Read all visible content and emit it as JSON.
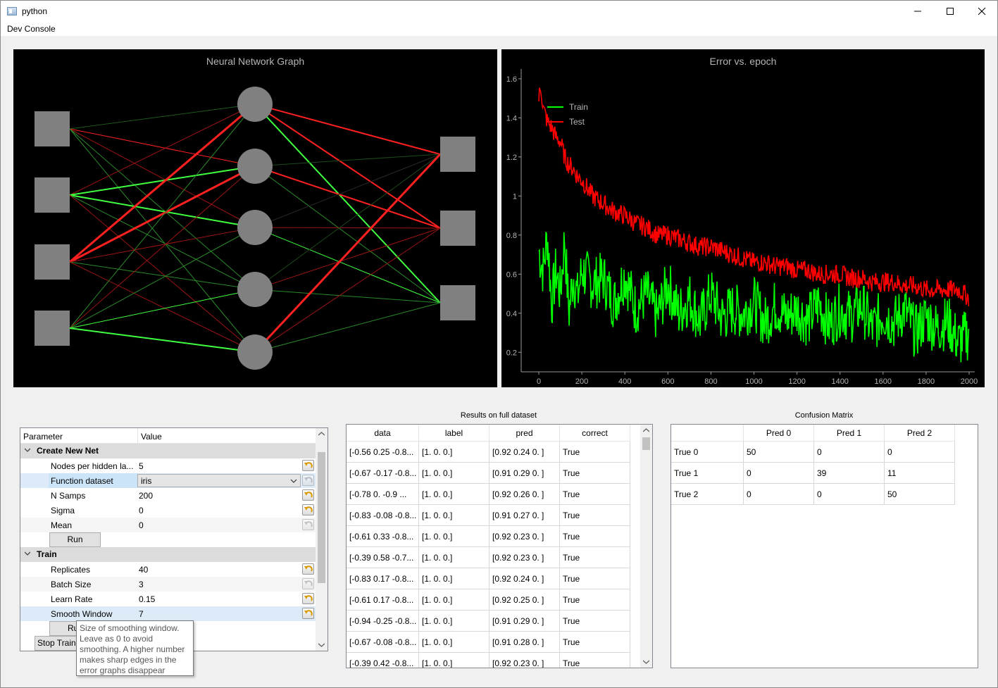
{
  "window": {
    "title": "python",
    "minimize_icon": "minimize-icon",
    "maximize_icon": "maximize-icon",
    "close_icon": "close-icon"
  },
  "menu": {
    "items": [
      "Dev Console"
    ]
  },
  "nn_graph": {
    "title": "Neural Network Graph",
    "layers": [
      4,
      5,
      3
    ],
    "edges_input_hidden": [
      [
        {
          "c": "#1d5a1d",
          "w": 1
        },
        {
          "c": "#ff2020",
          "w": 1
        },
        {
          "c": "#9b1414",
          "w": 1
        },
        {
          "c": "#2a8a2a",
          "w": 1
        },
        {
          "c": "#2a8a2a",
          "w": 1
        }
      ],
      [
        {
          "c": "#9b1414",
          "w": 1
        },
        {
          "c": "#40ff40",
          "w": 2
        },
        {
          "c": "#40ff40",
          "w": 2
        },
        {
          "c": "#2a8a2a",
          "w": 1
        },
        {
          "c": "#9b1414",
          "w": 1
        }
      ],
      [
        {
          "c": "#ff2020",
          "w": 3
        },
        {
          "c": "#ff2020",
          "w": 3
        },
        {
          "c": "#9b1414",
          "w": 1
        },
        {
          "c": "#2a8a2a",
          "w": 1
        },
        {
          "c": "#9b1414",
          "w": 1
        }
      ],
      [
        {
          "c": "#2a8a2a",
          "w": 1
        },
        {
          "c": "#9b1414",
          "w": 1
        },
        {
          "c": "#2a8a2a",
          "w": 1
        },
        {
          "c": "#40ff40",
          "w": 1
        },
        {
          "c": "#40ff40",
          "w": 2
        }
      ]
    ],
    "edges_hidden_output": [
      [
        {
          "c": "#ff2020",
          "w": 2
        },
        {
          "c": "#ff2020",
          "w": 2
        },
        {
          "c": "#40ff40",
          "w": 2
        }
      ],
      [
        {
          "c": "#1d4a1d",
          "w": 1
        },
        {
          "c": "#ff2020",
          "w": 2
        },
        {
          "c": "#2a8a2a",
          "w": 1
        }
      ],
      [
        {
          "c": "#2a2a2a",
          "w": 1
        },
        {
          "c": "#9b1414",
          "w": 1
        },
        {
          "c": "#40ff40",
          "w": 1
        }
      ],
      [
        {
          "c": "#1d4a1d",
          "w": 1
        },
        {
          "c": "#9b1414",
          "w": 1
        },
        {
          "c": "#2a8a2a",
          "w": 1
        }
      ],
      [
        {
          "c": "#ff2020",
          "w": 3
        },
        {
          "c": "#9b1414",
          "w": 1
        },
        {
          "c": "#2a8a2a",
          "w": 1
        }
      ]
    ]
  },
  "chart_data": {
    "type": "line",
    "title": "Error vs. epoch",
    "xlabel": "",
    "ylabel": "",
    "xlim": [
      0,
      2000
    ],
    "ylim": [
      0.1,
      1.65
    ],
    "xticks": [
      0,
      200,
      400,
      600,
      800,
      1000,
      1200,
      1400,
      1600,
      1800,
      2000
    ],
    "yticks": [
      0.2,
      0.4,
      0.6,
      0.8,
      1,
      1.2,
      1.4,
      1.6
    ],
    "ytick_labels": [
      "0.2",
      "0.4",
      "0.6",
      "0.8",
      "1",
      "1.2",
      "1.4",
      "1.6"
    ],
    "legend_position": "top-left",
    "series": [
      {
        "name": "Train",
        "color": "#00ff00",
        "x": [
          0,
          20,
          40,
          60,
          80,
          100,
          120,
          140,
          160,
          180,
          200,
          250,
          300,
          350,
          400,
          450,
          500,
          550,
          600,
          650,
          700,
          750,
          800,
          850,
          900,
          950,
          1000,
          1050,
          1100,
          1150,
          1200,
          1250,
          1300,
          1350,
          1400,
          1450,
          1500,
          1550,
          1600,
          1650,
          1700,
          1750,
          1800,
          1850,
          1900,
          1950,
          2000
        ],
        "y": [
          0.72,
          0.62,
          0.8,
          0.45,
          0.62,
          0.5,
          0.78,
          0.4,
          0.6,
          0.48,
          0.62,
          0.55,
          0.58,
          0.45,
          0.6,
          0.42,
          0.5,
          0.38,
          0.55,
          0.4,
          0.48,
          0.36,
          0.5,
          0.38,
          0.42,
          0.4,
          0.46,
          0.35,
          0.44,
          0.38,
          0.42,
          0.36,
          0.45,
          0.34,
          0.42,
          0.38,
          0.44,
          0.32,
          0.4,
          0.35,
          0.42,
          0.3,
          0.38,
          0.32,
          0.36,
          0.25,
          0.3
        ]
      },
      {
        "name": "Test",
        "color": "#ff0000",
        "x": [
          0,
          10,
          20,
          40,
          60,
          80,
          100,
          120,
          140,
          160,
          180,
          200,
          250,
          300,
          350,
          400,
          450,
          500,
          550,
          600,
          650,
          700,
          750,
          800,
          850,
          900,
          950,
          1000,
          1050,
          1100,
          1150,
          1200,
          1250,
          1300,
          1350,
          1400,
          1450,
          1500,
          1550,
          1600,
          1650,
          1700,
          1750,
          1800,
          1850,
          1900,
          1950,
          2000
        ],
        "y": [
          1.5,
          1.56,
          1.45,
          1.38,
          1.35,
          1.3,
          1.28,
          1.2,
          1.16,
          1.14,
          1.1,
          1.08,
          1.0,
          0.96,
          0.92,
          0.9,
          0.86,
          0.84,
          0.8,
          0.8,
          0.78,
          0.76,
          0.74,
          0.74,
          0.72,
          0.7,
          0.68,
          0.66,
          0.66,
          0.64,
          0.64,
          0.62,
          0.62,
          0.6,
          0.6,
          0.6,
          0.58,
          0.58,
          0.56,
          0.56,
          0.56,
          0.54,
          0.54,
          0.52,
          0.52,
          0.52,
          0.52,
          0.48
        ]
      }
    ]
  },
  "param_tree": {
    "headers": {
      "param": "Parameter",
      "value": "Value"
    },
    "groups": [
      {
        "label": "Create New Net",
        "rows": [
          {
            "name": "Nodes per hidden la...",
            "value": "5",
            "reset_active": true
          },
          {
            "name": "Function dataset",
            "value": "iris",
            "type": "combo",
            "reset_active": false
          },
          {
            "name": "N Samps",
            "value": "200",
            "reset_active": true
          },
          {
            "name": "Sigma",
            "value": "0",
            "reset_active": true
          },
          {
            "name": "Mean",
            "value": "0",
            "reset_active": false
          }
        ],
        "button": "Run"
      },
      {
        "label": "Train",
        "rows": [
          {
            "name": "Replicates",
            "value": "40",
            "reset_active": true
          },
          {
            "name": "Batch Size",
            "value": "3",
            "reset_active": false
          },
          {
            "name": "Learn Rate",
            "value": "0.15",
            "reset_active": true
          },
          {
            "name": "Smooth Window",
            "value": "7",
            "reset_active": true
          }
        ],
        "button": "Ru"
      }
    ],
    "stop_button": "Stop Traini",
    "tooltip": [
      "Size of smoothing window.",
      "Leave as 0 to avoid",
      "smoothing. A higher number",
      "makes sharp edges in the",
      "error graphs disappear"
    ]
  },
  "results": {
    "title": "Results on full dataset",
    "headers": [
      "data",
      "label",
      "pred",
      "correct"
    ],
    "rows": [
      [
        "[-0.56  0.25 -0.8...",
        "[1. 0. 0.]",
        "[0.92 0.24 0.  ]",
        "True"
      ],
      [
        "[-0.67 -0.17 -0.8...",
        "[1. 0. 0.]",
        "[0.91 0.29 0.  ]",
        "True"
      ],
      [
        "[-0.78  0.   -0.9  ...",
        "[1. 0. 0.]",
        "[0.92 0.26 0.  ]",
        "True"
      ],
      [
        "[-0.83 -0.08 -0.8...",
        "[1. 0. 0.]",
        "[0.91 0.27 0.  ]",
        "True"
      ],
      [
        "[-0.61  0.33 -0.8...",
        "[1. 0. 0.]",
        "[0.92 0.23 0.  ]",
        "True"
      ],
      [
        "[-0.39  0.58 -0.7...",
        "[1. 0. 0.]",
        "[0.92 0.23 0.  ]",
        "True"
      ],
      [
        "[-0.83  0.17 -0.8...",
        "[1. 0. 0.]",
        "[0.92 0.24 0.  ]",
        "True"
      ],
      [
        "[-0.61  0.17 -0.8...",
        "[1. 0. 0.]",
        "[0.92 0.25 0.  ]",
        "True"
      ],
      [
        "[-0.94 -0.25 -0.8...",
        "[1. 0. 0.]",
        "[0.91 0.29 0.  ]",
        "True"
      ],
      [
        "[-0.67 -0.08 -0.8...",
        "[1. 0. 0.]",
        "[0.91 0.28 0.  ]",
        "True"
      ],
      [
        "[-0.39  0.42 -0.8...",
        "[1. 0. 0.]",
        "[0.92 0.23 0.  ]",
        "True"
      ]
    ]
  },
  "confusion": {
    "title": "Confusion Matrix",
    "col_headers": [
      "Pred 0",
      "Pred 1",
      "Pred 2"
    ],
    "row_headers": [
      "True 0",
      "True 1",
      "True 2"
    ],
    "values": [
      [
        "50",
        "0",
        "0"
      ],
      [
        "0",
        "39",
        "11"
      ],
      [
        "0",
        "0",
        "50"
      ]
    ]
  }
}
